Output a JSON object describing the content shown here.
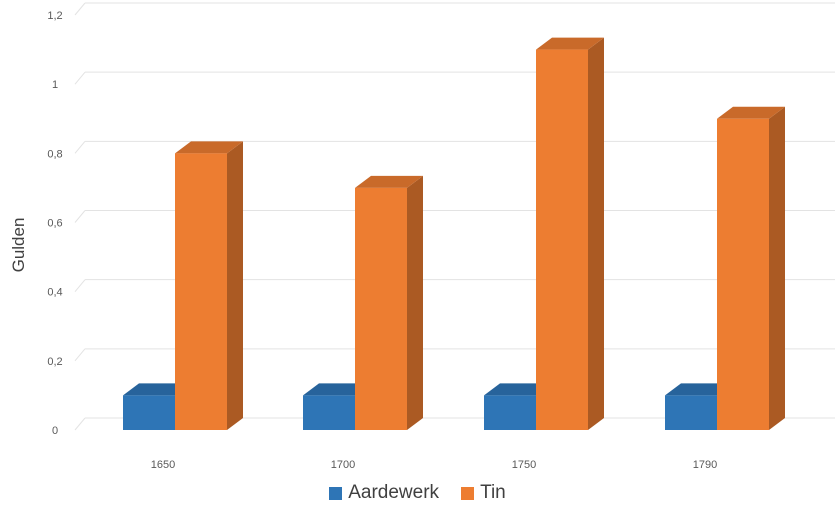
{
  "chart_data": {
    "type": "bar",
    "title": "",
    "xlabel": "",
    "ylabel": "Gulden",
    "categories": [
      "1650",
      "1700",
      "1750",
      "1790"
    ],
    "series": [
      {
        "name": "Aardewerk",
        "values": [
          0.1,
          0.1,
          0.1,
          0.1
        ],
        "color": "#2E75B6"
      },
      {
        "name": "Tin",
        "values": [
          0.8,
          0.7,
          1.1,
          0.9
        ],
        "color": "#ED7D31"
      }
    ],
    "yticks": [
      "0",
      "0,2",
      "0,4",
      "0,6",
      "0,8",
      "1",
      "1,2"
    ],
    "ylim": [
      0,
      1.2
    ],
    "grid": true,
    "legend_position": "bottom",
    "style_3d": true
  }
}
